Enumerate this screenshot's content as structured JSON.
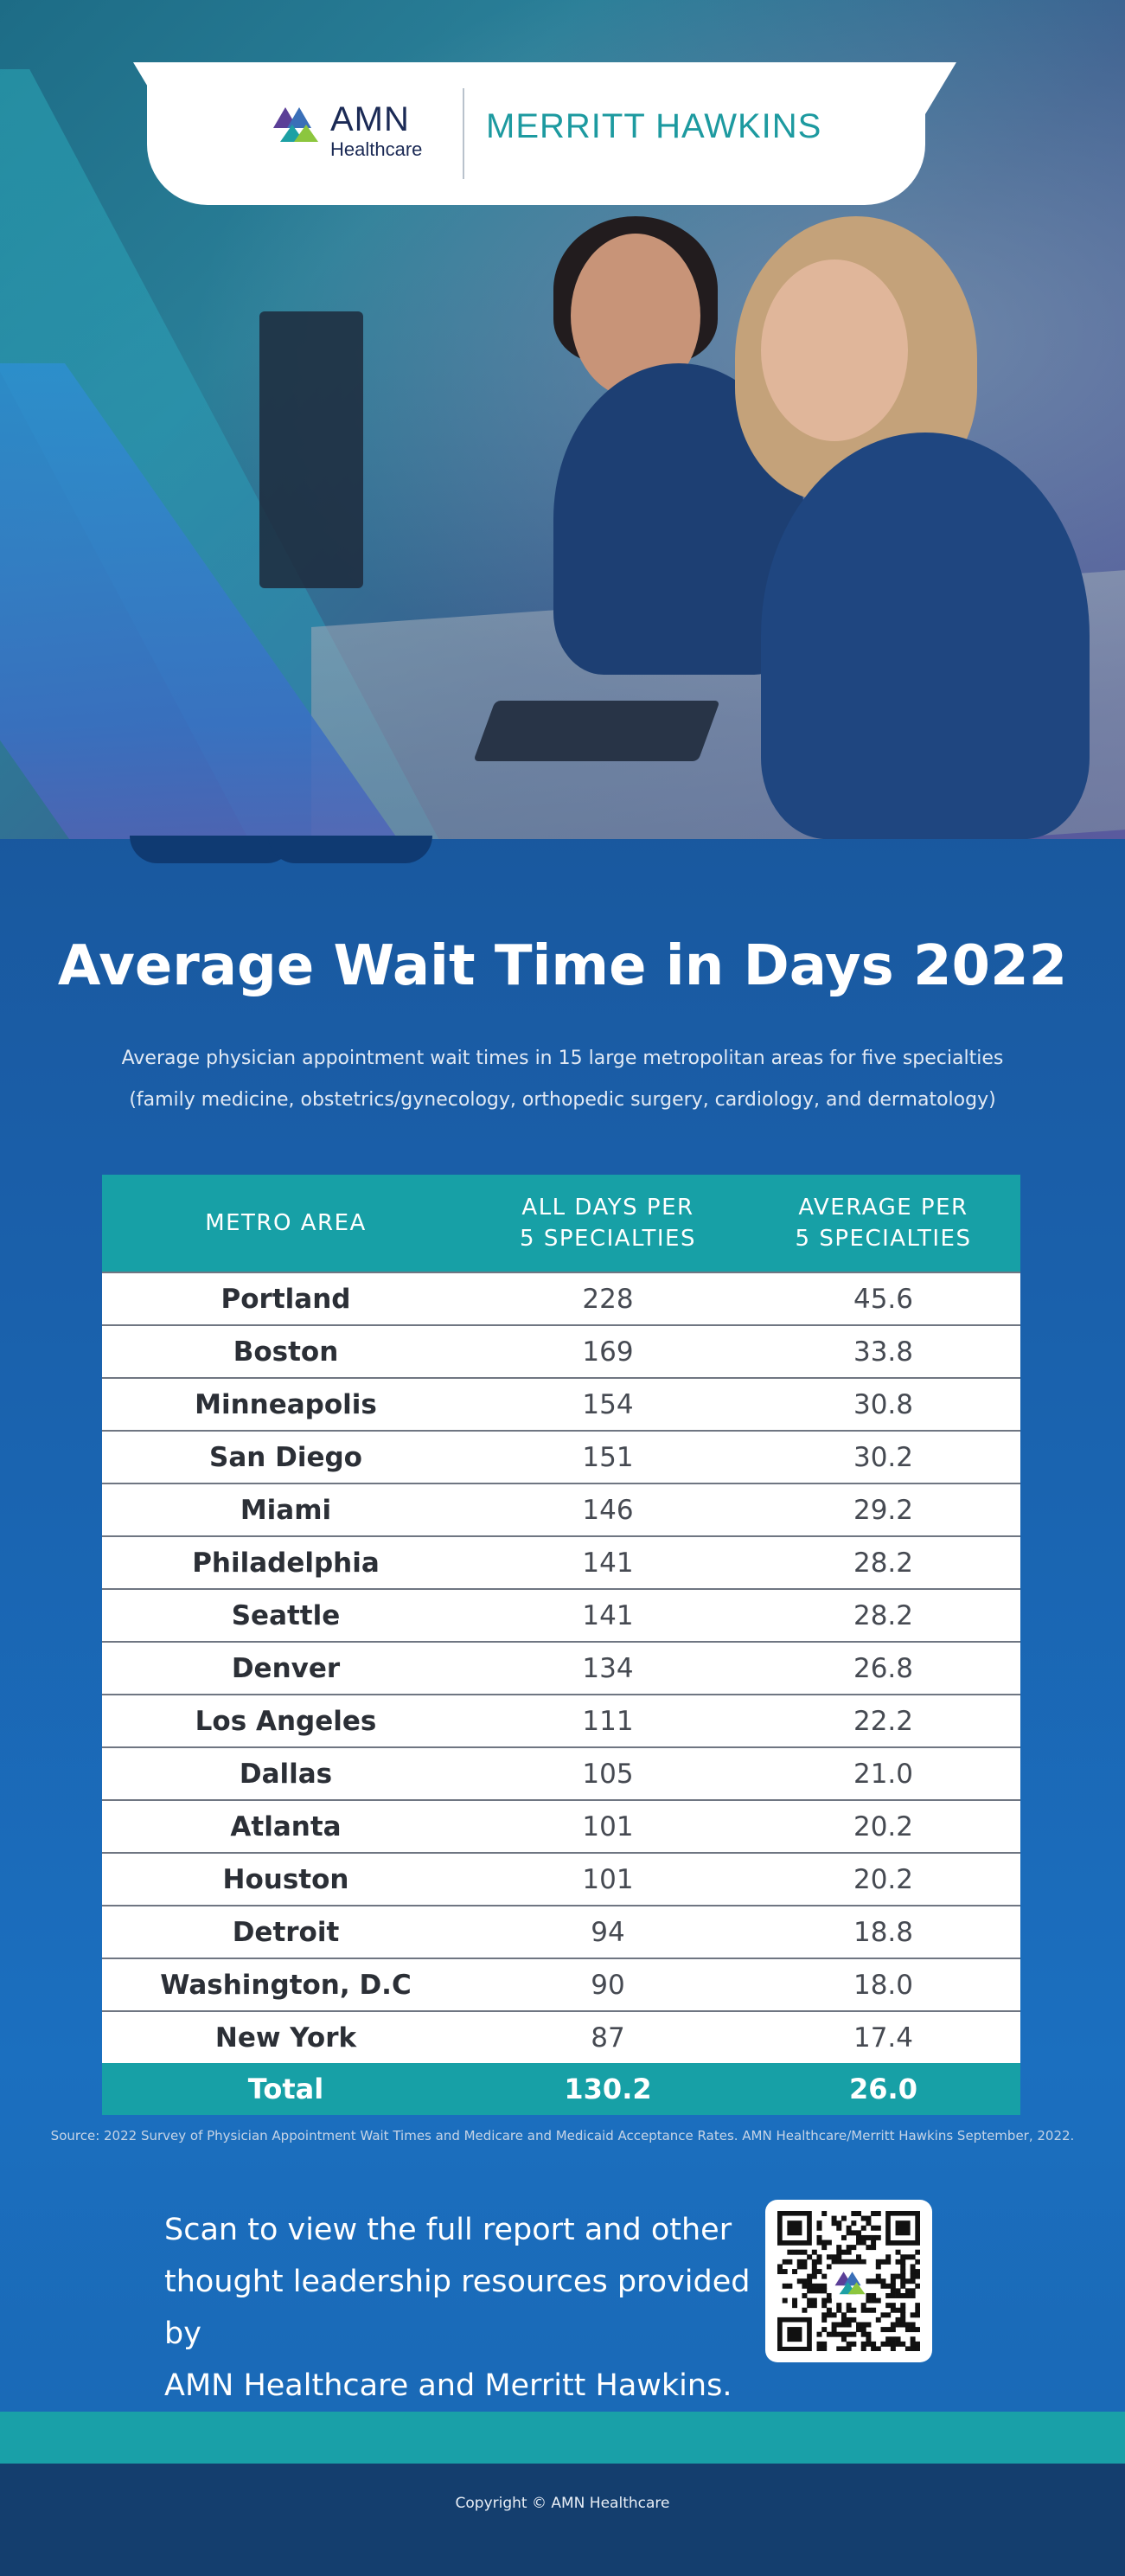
{
  "header": {
    "amn_name": "AMN",
    "amn_sub": "Healthcare",
    "partner_name": "MERRITT HAWKINS"
  },
  "title": "Average Wait Time in Days 2022",
  "subtitle_line1": "Average physician appointment wait times in 15 large metropolitan areas for five specialties",
  "subtitle_line2": "(family medicine, obstetrics/gynecology, orthopedic surgery, cardiology, and dermatology)",
  "table": {
    "columns": {
      "metro": "METRO AREA",
      "all_days_1": "ALL DAYS PER",
      "all_days_2": "5 SPECIALTIES",
      "average_1": "AVERAGE PER",
      "average_2": "5 SPECIALTIES"
    },
    "rows": [
      {
        "metro": "Portland",
        "all_days": "228",
        "average": "45.6"
      },
      {
        "metro": "Boston",
        "all_days": "169",
        "average": "33.8"
      },
      {
        "metro": "Minneapolis",
        "all_days": "154",
        "average": "30.8"
      },
      {
        "metro": "San Diego",
        "all_days": "151",
        "average": "30.2"
      },
      {
        "metro": "Miami",
        "all_days": "146",
        "average": "29.2"
      },
      {
        "metro": "Philadelphia",
        "all_days": "141",
        "average": "28.2"
      },
      {
        "metro": "Seattle",
        "all_days": "141",
        "average": "28.2"
      },
      {
        "metro": "Denver",
        "all_days": "134",
        "average": "26.8"
      },
      {
        "metro": "Los Angeles",
        "all_days": "111",
        "average": "22.2"
      },
      {
        "metro": "Dallas",
        "all_days": "105",
        "average": "21.0"
      },
      {
        "metro": "Atlanta",
        "all_days": "101",
        "average": "20.2"
      },
      {
        "metro": "Houston",
        "all_days": "101",
        "average": "20.2"
      },
      {
        "metro": "Detroit",
        "all_days": "94",
        "average": "18.8"
      },
      {
        "metro": "Washington, D.C",
        "all_days": "90",
        "average": "18.0"
      },
      {
        "metro": "New York",
        "all_days": "87",
        "average": "17.4"
      }
    ],
    "total": {
      "label": "Total",
      "all_days": "130.2",
      "average": "26.0"
    }
  },
  "source": "Source: 2022 Survey of Physician Appointment Wait Times and Medicare and Medicaid Acceptance Rates. AMN Healthcare/Merritt Hawkins September, 2022.",
  "scan": {
    "line1": "Scan to view the full report and other",
    "line2": "thought leadership resources provided by",
    "line3": "AMN Healthcare and Merritt Hawkins."
  },
  "copyright": "Copyright © AMN Healthcare",
  "colors": {
    "teal": "#17a0a6",
    "navy": "#164a86",
    "blue": "#1b6fbf"
  }
}
